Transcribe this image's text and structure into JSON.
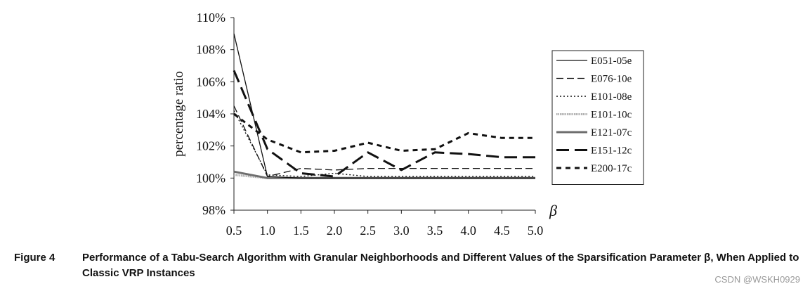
{
  "chart_data": {
    "type": "line",
    "x": [
      0.5,
      1.0,
      1.5,
      2.0,
      2.5,
      3.0,
      3.5,
      4.0,
      4.5,
      5.0
    ],
    "x_tick_labels": [
      "0.5",
      "1.0",
      "1.5",
      "2.0",
      "2.5",
      "3.0",
      "3.5",
      "4.0",
      "4.5",
      "5.0"
    ],
    "xlabel": "β",
    "ylabel": "percentage ratio",
    "ylim": [
      98,
      110
    ],
    "y_ticks": [
      98,
      100,
      102,
      104,
      106,
      108,
      110
    ],
    "y_tick_labels": [
      "98%",
      "100%",
      "102%",
      "104%",
      "106%",
      "108%",
      "110%"
    ],
    "grid": false,
    "legend_position": "right",
    "series": [
      {
        "name": "E051-05e",
        "style": "solid",
        "color": "#111111",
        "values": [
          109.0,
          100.1,
          100.0,
          100.0,
          100.0,
          100.0,
          100.0,
          100.0,
          100.0,
          100.0
        ]
      },
      {
        "name": "E076-10e",
        "style": "dashed",
        "color": "#111111",
        "values": [
          104.5,
          100.1,
          100.6,
          100.5,
          100.6,
          100.6,
          100.6,
          100.6,
          100.6,
          100.6
        ]
      },
      {
        "name": "E101-08e",
        "style": "dotted",
        "color": "#111111",
        "values": [
          104.2,
          100.2,
          100.1,
          100.3,
          100.1,
          100.1,
          100.1,
          100.1,
          100.1,
          100.1
        ]
      },
      {
        "name": "E101-10c",
        "style": "gray-dotted-thick",
        "color": "#aaaaaa",
        "values": [
          100.2,
          100.0,
          100.0,
          100.0,
          100.0,
          100.0,
          100.0,
          100.0,
          100.0,
          100.0
        ]
      },
      {
        "name": "E121-07c",
        "style": "gray-solid-thick",
        "color": "#6e6e6e",
        "values": [
          100.4,
          100.0,
          100.0,
          100.0,
          100.0,
          100.0,
          100.0,
          100.0,
          100.0,
          100.0
        ]
      },
      {
        "name": "E151-12c",
        "style": "long-dash-thick",
        "color": "#111111",
        "values": [
          106.7,
          101.8,
          100.3,
          100.1,
          101.6,
          100.5,
          101.6,
          101.5,
          101.3,
          101.3
        ]
      },
      {
        "name": "E200-17c",
        "style": "short-dash-thick",
        "color": "#111111",
        "values": [
          104.0,
          102.4,
          101.6,
          101.7,
          102.2,
          101.7,
          101.8,
          102.8,
          102.5,
          102.5
        ]
      }
    ]
  },
  "caption": {
    "label": "Figure 4",
    "text": "Performance of a Tabu-Search Algorithm with Granular Neighborhoods and Different Values of the Sparsification Parameter β, When Applied to Classic VRP Instances"
  },
  "watermark": "CSDN @WSKH0929"
}
